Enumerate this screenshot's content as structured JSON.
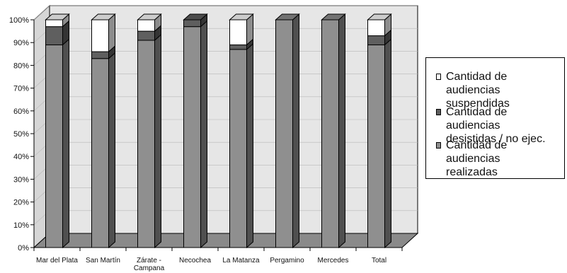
{
  "chart_data": {
    "type": "bar",
    "stacked": true,
    "percent": true,
    "three_d": true,
    "categories": [
      "Mar del Plata",
      "San Martín",
      "Zárate - Campana",
      "Necochea",
      "La Matanza",
      "Pergamino",
      "Mercedes",
      "Total"
    ],
    "series": [
      {
        "name": "Cantidad de audiencias realizadas",
        "values": [
          89,
          83,
          91,
          97,
          87,
          100,
          100,
          89
        ],
        "color": "#8f8f8f"
      },
      {
        "name": "Cantidad de audiencias desistidas / no ejec.",
        "values": [
          8,
          3,
          4,
          3,
          2,
          0,
          0,
          4
        ],
        "color": "#5f5f5f"
      },
      {
        "name": "Cantidad de audiencias suspendidas",
        "values": [
          3,
          14,
          5,
          0,
          11,
          0,
          0,
          7
        ],
        "color": "#ffffff"
      }
    ],
    "y_ticks": [
      "0%",
      "10%",
      "20%",
      "30%",
      "40%",
      "50%",
      "60%",
      "70%",
      "80%",
      "90%",
      "100%"
    ],
    "ylim": [
      0,
      100
    ],
    "legend_position": "right",
    "colors": {
      "wall": "#e6e6e6",
      "floor": "#8a8a8a"
    }
  },
  "legend": {
    "items": [
      {
        "label": "Cantidad de audiencias\nsuspendidas",
        "color": "#ffffff"
      },
      {
        "label": "Cantidad de audiencias\ndesistidas / no ejec.",
        "color": "#5f5f5f"
      },
      {
        "label": "Cantidad de audiencias\nrealizadas",
        "color": "#8f8f8f"
      }
    ]
  }
}
